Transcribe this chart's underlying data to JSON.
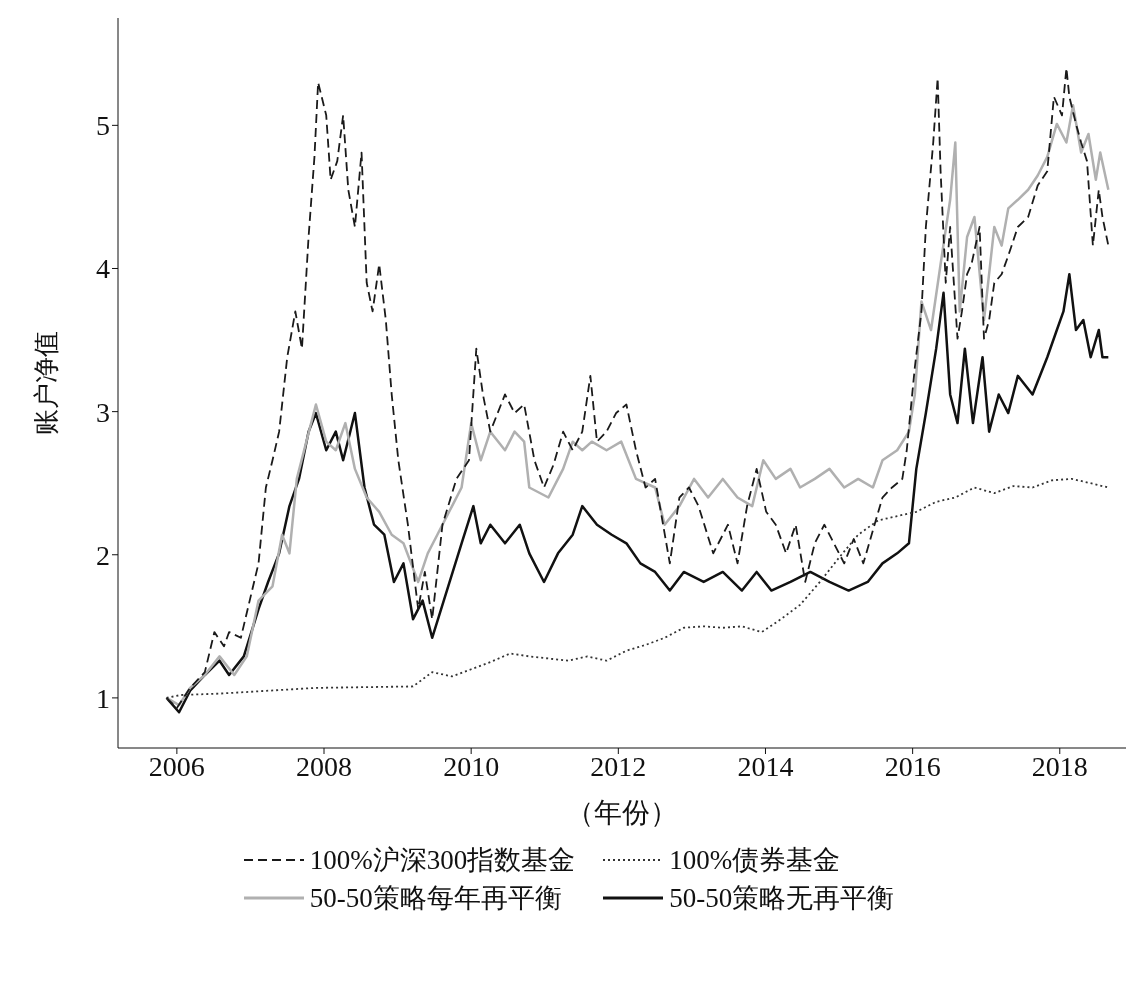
{
  "chart_data": {
    "type": "line",
    "xlabel": "（年份）",
    "ylabel": "账户净值",
    "xlim": [
      2005.2,
      2018.9
    ],
    "ylim": [
      0.65,
      5.75
    ],
    "xticks": [
      2006,
      2008,
      2010,
      2012,
      2014,
      2016,
      2018
    ],
    "yticks": [
      1,
      2,
      3,
      4,
      5
    ],
    "grid": false,
    "legend": "bottom",
    "marker": "none",
    "series": [
      {
        "name": "100%沪深300指数基金",
        "color": "#1a1a1a",
        "line_style": "dashed",
        "x": [
          2005.86,
          2006.0,
          2006.18,
          2006.38,
          2006.51,
          2006.64,
          2006.71,
          2006.87,
          2007.11,
          2007.21,
          2007.3,
          2007.39,
          2007.5,
          2007.61,
          2007.7,
          2007.79,
          2007.87,
          2007.92,
          2008.03,
          2008.09,
          2008.18,
          2008.26,
          2008.33,
          2008.42,
          2008.51,
          2008.58,
          2008.66,
          2008.75,
          2008.84,
          2008.92,
          2009.01,
          2009.14,
          2009.28,
          2009.37,
          2009.47,
          2009.61,
          2009.8,
          2009.97,
          2010.07,
          2010.16,
          2010.26,
          2010.46,
          2010.59,
          2010.72,
          2010.86,
          2010.99,
          2011.12,
          2011.25,
          2011.38,
          2011.51,
          2011.62,
          2011.71,
          2011.84,
          2011.97,
          2012.11,
          2012.24,
          2012.37,
          2012.5,
          2012.7,
          2012.83,
          2012.96,
          2013.09,
          2013.29,
          2013.49,
          2013.62,
          2013.75,
          2013.88,
          2014.01,
          2014.14,
          2014.28,
          2014.41,
          2014.54,
          2014.67,
          2014.8,
          2014.93,
          2015.07,
          2015.2,
          2015.33,
          2015.46,
          2015.59,
          2015.72,
          2015.86,
          2015.92,
          2016.03,
          2016.12,
          2016.18,
          2016.28,
          2016.34,
          2016.38,
          2016.45,
          2016.51,
          2016.61,
          2016.67,
          2016.74,
          2016.8,
          2016.91,
          2016.97,
          2017.04,
          2017.11,
          2017.21,
          2017.3,
          2017.43,
          2017.57,
          2017.7,
          2017.83,
          2017.92,
          2018.03,
          2018.09,
          2018.13,
          2018.22,
          2018.29,
          2018.37,
          2018.45,
          2018.53,
          2018.58,
          2018.66
        ],
        "values": [
          1.0,
          0.93,
          1.07,
          1.18,
          1.46,
          1.36,
          1.46,
          1.42,
          1.94,
          2.47,
          2.66,
          2.86,
          3.38,
          3.7,
          3.44,
          4.22,
          4.78,
          5.3,
          5.07,
          4.62,
          4.75,
          5.07,
          4.55,
          4.29,
          4.81,
          3.9,
          3.7,
          4.03,
          3.64,
          3.12,
          2.66,
          2.21,
          1.62,
          1.88,
          1.55,
          2.21,
          2.53,
          2.66,
          3.44,
          3.12,
          2.86,
          3.12,
          2.99,
          3.05,
          2.66,
          2.47,
          2.63,
          2.86,
          2.73,
          2.86,
          3.25,
          2.79,
          2.86,
          2.99,
          3.05,
          2.73,
          2.47,
          2.53,
          1.94,
          2.4,
          2.47,
          2.34,
          2.01,
          2.21,
          1.94,
          2.34,
          2.6,
          2.3,
          2.21,
          2.01,
          2.21,
          1.81,
          2.08,
          2.21,
          2.08,
          1.94,
          2.11,
          1.94,
          2.17,
          2.4,
          2.47,
          2.53,
          2.73,
          3.31,
          3.7,
          4.29,
          4.88,
          5.33,
          4.68,
          3.9,
          4.29,
          3.51,
          3.7,
          3.96,
          4.03,
          4.29,
          3.51,
          3.64,
          3.9,
          3.96,
          4.09,
          4.29,
          4.36,
          4.58,
          4.68,
          5.2,
          5.07,
          5.4,
          5.2,
          5.01,
          4.88,
          4.75,
          4.16,
          4.55,
          4.36,
          4.16
        ]
      },
      {
        "name": "100%债券基金",
        "color": "#333333",
        "line_style": "dotted",
        "x": [
          2005.86,
          2006.05,
          2006.58,
          2007.89,
          2009.21,
          2009.34,
          2009.47,
          2009.74,
          2010.0,
          2010.26,
          2010.53,
          2010.79,
          2011.32,
          2011.58,
          2011.84,
          2012.11,
          2012.37,
          2012.63,
          2012.89,
          2013.16,
          2013.42,
          2013.68,
          2013.95,
          2014.21,
          2014.47,
          2014.74,
          2015.0,
          2015.26,
          2015.53,
          2015.79,
          2016.05,
          2016.32,
          2016.58,
          2016.84,
          2017.11,
          2017.37,
          2017.63,
          2017.89,
          2018.16,
          2018.42,
          2018.66
        ],
        "values": [
          1.0,
          1.02,
          1.03,
          1.07,
          1.08,
          1.13,
          1.18,
          1.15,
          1.2,
          1.25,
          1.31,
          1.29,
          1.26,
          1.29,
          1.26,
          1.33,
          1.37,
          1.42,
          1.49,
          1.5,
          1.49,
          1.5,
          1.46,
          1.55,
          1.65,
          1.81,
          1.98,
          2.14,
          2.24,
          2.27,
          2.3,
          2.37,
          2.4,
          2.47,
          2.43,
          2.48,
          2.47,
          2.52,
          2.53,
          2.5,
          2.47
        ]
      },
      {
        "name": "50-50策略每年再平衡",
        "color": "#b0b0b0",
        "line_style": "solid",
        "x": [
          2005.86,
          2006.03,
          2006.18,
          2006.38,
          2006.58,
          2006.78,
          2006.95,
          2007.11,
          2007.3,
          2007.43,
          2007.53,
          2007.63,
          2007.76,
          2007.89,
          2008.03,
          2008.16,
          2008.29,
          2008.42,
          2008.58,
          2008.75,
          2008.92,
          2009.08,
          2009.28,
          2009.41,
          2009.54,
          2009.74,
          2009.87,
          2010.0,
          2010.13,
          2010.26,
          2010.46,
          2010.59,
          2010.72,
          2010.79,
          2011.05,
          2011.25,
          2011.38,
          2011.51,
          2011.64,
          2011.84,
          2012.04,
          2012.24,
          2012.5,
          2012.63,
          2012.83,
          2013.03,
          2013.22,
          2013.42,
          2013.62,
          2013.82,
          2013.97,
          2014.14,
          2014.34,
          2014.47,
          2014.67,
          2014.87,
          2015.07,
          2015.26,
          2015.46,
          2015.59,
          2015.79,
          2015.95,
          2016.03,
          2016.12,
          2016.25,
          2016.38,
          2016.51,
          2016.58,
          2016.64,
          2016.74,
          2016.84,
          2016.97,
          2017.11,
          2017.21,
          2017.3,
          2017.43,
          2017.57,
          2017.7,
          2017.83,
          2017.96,
          2018.09,
          2018.18,
          2018.29,
          2018.39,
          2018.49,
          2018.55,
          2018.66
        ],
        "values": [
          1.0,
          0.95,
          1.07,
          1.16,
          1.29,
          1.16,
          1.29,
          1.68,
          1.78,
          2.14,
          2.01,
          2.53,
          2.79,
          3.05,
          2.79,
          2.73,
          2.92,
          2.6,
          2.4,
          2.3,
          2.14,
          2.08,
          1.81,
          2.01,
          2.14,
          2.34,
          2.47,
          2.92,
          2.66,
          2.86,
          2.73,
          2.86,
          2.79,
          2.47,
          2.4,
          2.6,
          2.79,
          2.73,
          2.79,
          2.73,
          2.79,
          2.53,
          2.47,
          2.21,
          2.34,
          2.53,
          2.4,
          2.53,
          2.4,
          2.34,
          2.66,
          2.53,
          2.6,
          2.47,
          2.53,
          2.6,
          2.47,
          2.53,
          2.47,
          2.66,
          2.73,
          2.86,
          3.12,
          3.77,
          3.57,
          4.03,
          4.48,
          4.88,
          3.7,
          4.22,
          4.36,
          3.64,
          4.29,
          4.16,
          4.42,
          4.48,
          4.55,
          4.65,
          4.78,
          5.01,
          4.88,
          5.14,
          4.81,
          4.94,
          4.62,
          4.81,
          4.55
        ]
      },
      {
        "name": "50-50策略无再平衡",
        "color": "#111111",
        "line_style": "solid",
        "x": [
          2005.86,
          2006.03,
          2006.18,
          2006.38,
          2006.58,
          2006.71,
          2006.91,
          2007.11,
          2007.24,
          2007.39,
          2007.53,
          2007.66,
          2007.79,
          2007.89,
          2008.03,
          2008.16,
          2008.26,
          2008.42,
          2008.55,
          2008.68,
          2008.82,
          2008.95,
          2009.08,
          2009.21,
          2009.34,
          2009.47,
          2009.67,
          2009.87,
          2010.03,
          2010.13,
          2010.26,
          2010.46,
          2010.66,
          2010.79,
          2010.99,
          2011.18,
          2011.38,
          2011.51,
          2011.71,
          2011.91,
          2012.11,
          2012.3,
          2012.5,
          2012.7,
          2012.89,
          2013.16,
          2013.42,
          2013.68,
          2013.88,
          2014.08,
          2014.34,
          2014.61,
          2014.87,
          2015.13,
          2015.39,
          2015.59,
          2015.79,
          2015.95,
          2016.05,
          2016.18,
          2016.32,
          2016.42,
          2016.51,
          2016.61,
          2016.71,
          2016.82,
          2016.95,
          2017.04,
          2017.17,
          2017.3,
          2017.43,
          2017.63,
          2017.83,
          2017.96,
          2018.05,
          2018.13,
          2018.22,
          2018.32,
          2018.42,
          2018.53,
          2018.58,
          2018.66
        ],
        "values": [
          1.0,
          0.9,
          1.05,
          1.16,
          1.26,
          1.16,
          1.29,
          1.62,
          1.81,
          2.01,
          2.34,
          2.53,
          2.86,
          2.99,
          2.73,
          2.86,
          2.66,
          2.99,
          2.47,
          2.21,
          2.14,
          1.81,
          1.94,
          1.55,
          1.68,
          1.42,
          1.75,
          2.08,
          2.34,
          2.08,
          2.21,
          2.08,
          2.21,
          2.01,
          1.81,
          2.01,
          2.14,
          2.34,
          2.21,
          2.14,
          2.08,
          1.94,
          1.88,
          1.75,
          1.88,
          1.81,
          1.88,
          1.75,
          1.88,
          1.75,
          1.81,
          1.88,
          1.81,
          1.75,
          1.81,
          1.94,
          2.01,
          2.08,
          2.6,
          2.99,
          3.44,
          3.83,
          3.12,
          2.92,
          3.44,
          2.92,
          3.38,
          2.86,
          3.12,
          2.99,
          3.25,
          3.12,
          3.38,
          3.57,
          3.7,
          3.96,
          3.57,
          3.64,
          3.38,
          3.57,
          3.38,
          3.38
        ]
      }
    ]
  }
}
